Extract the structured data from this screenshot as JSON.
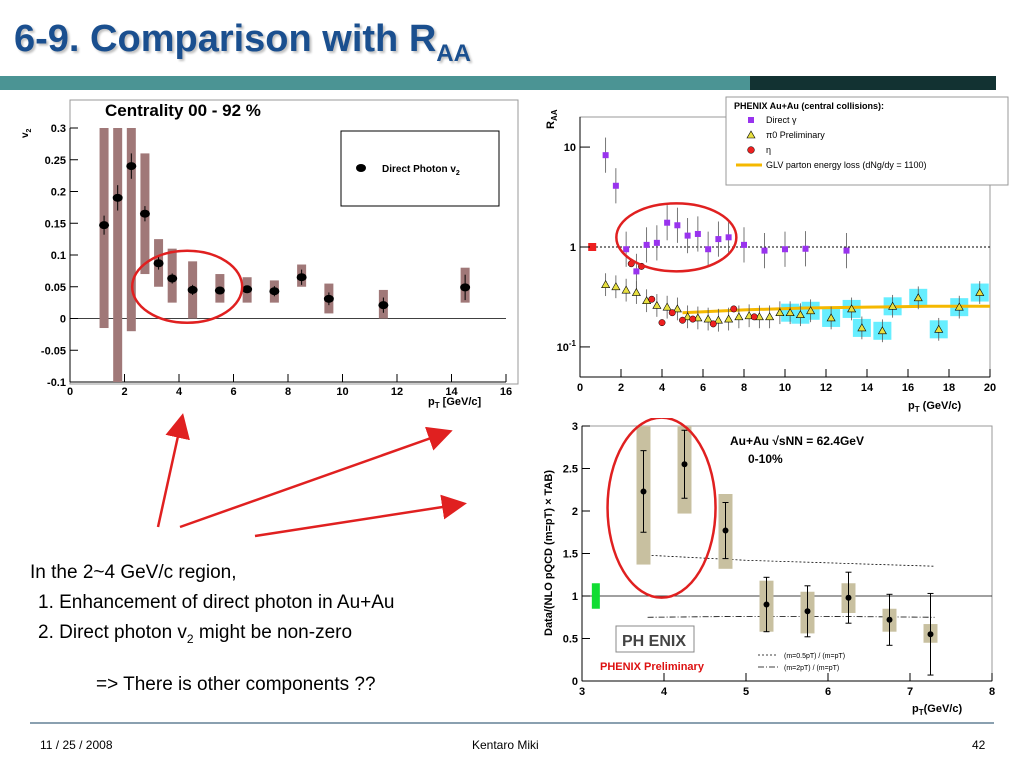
{
  "slide": {
    "title_main": "6-9. Comparison with R",
    "title_sub": "AA",
    "footer_date": "11 / 25 / 2008",
    "footer_author": "Kentaro Miki",
    "footer_page": "42",
    "text_intro": "In the 2~4 GeV/c region,",
    "text_point1": "1. Enhancement of direct photon in Au+Au",
    "text_point2_a": "2. Direct photon v",
    "text_point2_sub": "2",
    "text_point2_b": " might be non-zero",
    "text_conclusion": "=> There is other components ??"
  },
  "colors": {
    "title": "#1a4f8f",
    "annotation_red": "#e02020",
    "sys_band_v2": "#a07878",
    "sys_band_data": "#c8c0a0",
    "pi0_fill": "#e8e040",
    "direct_gamma": "#9933ee",
    "eta": "#ee2020",
    "glv_line": "#f5b800",
    "cyan_box": "#66eeff"
  },
  "chart_data": [
    {
      "type": "scatter",
      "title": "Centrality 00 - 92 %",
      "xlabel": "p",
      "xlabel_sub": "T",
      "xlabel_unit": " [GeV/c]",
      "ylabel": "v",
      "ylabel_sub": "2",
      "xlim": [
        0,
        16
      ],
      "ylim": [
        -0.1,
        0.3
      ],
      "xticks": [
        "0",
        "2",
        "4",
        "6",
        "8",
        "10",
        "12",
        "14",
        "16"
      ],
      "yticks": [
        "-0.1",
        "-0.05",
        "0",
        "0.05",
        "0.1",
        "0.15",
        "0.2",
        "0.25",
        "0.3"
      ],
      "legend": "Direct Photon v",
      "legend_sub": "2",
      "series": [
        {
          "x": [
            1.25,
            1.75,
            2.25,
            2.75,
            3.25,
            3.75,
            4.5,
            5.5,
            6.5,
            7.5,
            8.5,
            9.5,
            11.5,
            14.5
          ],
          "y": [
            0.147,
            0.19,
            0.24,
            0.165,
            0.087,
            0.063,
            0.045,
            0.044,
            0.046,
            0.043,
            0.065,
            0.031,
            0.021,
            0.049
          ],
          "stat_err": [
            0.015,
            0.02,
            0.02,
            0.012,
            0.01,
            0.008,
            0.008,
            0.006,
            0.006,
            0.008,
            0.012,
            0.01,
            0.012,
            0.02
          ],
          "sys_lo": [
            -0.015,
            -0.1,
            -0.02,
            0.07,
            0.05,
            0.025,
            0.0,
            0.025,
            0.025,
            0.025,
            0.05,
            0.008,
            0.0,
            0.025
          ],
          "sys_hi": [
            0.3,
            0.3,
            0.3,
            0.26,
            0.125,
            0.11,
            0.09,
            0.07,
            0.065,
            0.06,
            0.085,
            0.055,
            0.045,
            0.08
          ]
        }
      ]
    },
    {
      "type": "scatter",
      "ylabel": "R",
      "ylabel_sub": "AA",
      "xlabel": "p",
      "xlabel_sub": "T",
      "xlabel_unit": " (GeV/c)",
      "xlim": [
        0,
        20
      ],
      "ylim": [
        0.05,
        20
      ],
      "yscale": "log",
      "xticks": [
        "0",
        "2",
        "4",
        "6",
        "8",
        "10",
        "12",
        "14",
        "16",
        "18",
        "20"
      ],
      "yticks": [
        {
          "v": 10,
          "label": "10"
        },
        {
          "v": 1,
          "label": "1"
        },
        {
          "v": 0.1,
          "label": "10-1"
        }
      ],
      "legend_title": "PHENIX Au+Au (central collisions):",
      "legend_entries": [
        "Direct γ",
        "π0 Preliminary",
        "η",
        "GLV parton energy loss (dNg/dy = 1100)"
      ],
      "series": [
        {
          "name": "Direct γ",
          "x": [
            1.25,
            1.75,
            2.25,
            2.75,
            3.25,
            3.75,
            4.25,
            4.75,
            5.25,
            5.75,
            6.25,
            6.75,
            7.25,
            8.0,
            9.0,
            10.0,
            11.0,
            13.0
          ],
          "y": [
            8.3,
            4.1,
            0.95,
            0.57,
            1.05,
            1.1,
            1.75,
            1.65,
            1.3,
            1.35,
            0.95,
            1.2,
            1.25,
            1.05,
            0.92,
            0.95,
            0.96,
            0.92
          ]
        },
        {
          "name": "π0 Preliminary",
          "x": [
            1.25,
            1.75,
            2.25,
            2.75,
            3.25,
            3.75,
            4.25,
            4.75,
            5.25,
            5.75,
            6.25,
            6.75,
            7.25,
            7.75,
            8.25,
            8.75,
            9.25,
            9.75,
            10.25,
            10.75,
            11.25,
            12.25,
            13.25,
            13.75,
            14.75,
            15.25,
            16.5,
            17.5,
            18.5,
            19.5
          ],
          "y": [
            0.42,
            0.4,
            0.37,
            0.35,
            0.29,
            0.26,
            0.25,
            0.24,
            0.2,
            0.195,
            0.19,
            0.185,
            0.19,
            0.2,
            0.205,
            0.2,
            0.2,
            0.22,
            0.22,
            0.21,
            0.23,
            0.195,
            0.24,
            0.155,
            0.145,
            0.255,
            0.31,
            0.15,
            0.25,
            0.35
          ]
        },
        {
          "name": "η",
          "x": [
            2.5,
            3.0,
            3.5,
            4.0,
            4.5,
            5.0,
            5.5,
            6.5,
            7.5,
            8.5
          ],
          "y": [
            0.68,
            0.64,
            0.3,
            0.175,
            0.22,
            0.185,
            0.19,
            0.17,
            0.24,
            0.2
          ]
        },
        {
          "name": "GLV parton energy loss",
          "x": [
            5,
            8,
            11,
            14,
            17,
            20
          ],
          "y": [
            0.22,
            0.235,
            0.245,
            0.25,
            0.255,
            0.255
          ]
        }
      ]
    },
    {
      "type": "scatter",
      "ylabel": "Data/(NLO pQCD (m=pT) × TAB)",
      "xlabel": "p",
      "xlabel_sub": "T",
      "xlabel_unit": "(GeV/c)",
      "xlim": [
        3,
        8
      ],
      "ylim": [
        0,
        3
      ],
      "xticks": [
        "3",
        "4",
        "5",
        "6",
        "7",
        "8"
      ],
      "yticks": [
        "0",
        "0.5",
        "1",
        "1.5",
        "2",
        "2.5",
        "3"
      ],
      "annotation_line1": "Au+Au √sNN = 62.4GeV",
      "annotation_line2": "0-10%",
      "logo": "PH ENIX",
      "preliminary": "PHENIX Preliminary",
      "curve_labels": [
        "(m=0.5pT) / (m=pT)",
        "(m=2pT) / (m=pT)"
      ],
      "series": [
        {
          "x": [
            3.75,
            4.25,
            4.75,
            5.25,
            5.75,
            6.25,
            6.75,
            7.25
          ],
          "y": [
            2.23,
            2.55,
            1.77,
            0.9,
            0.82,
            0.98,
            0.72,
            0.55
          ],
          "stat_err": [
            0.48,
            0.4,
            0.33,
            0.32,
            0.3,
            0.3,
            0.3,
            0.48
          ],
          "sys_lo": [
            1.37,
            1.97,
            1.32,
            0.58,
            0.56,
            0.8,
            0.58,
            0.45
          ],
          "sys_hi": [
            3.0,
            3.0,
            2.2,
            1.18,
            1.05,
            1.15,
            0.85,
            0.67
          ]
        }
      ]
    }
  ]
}
